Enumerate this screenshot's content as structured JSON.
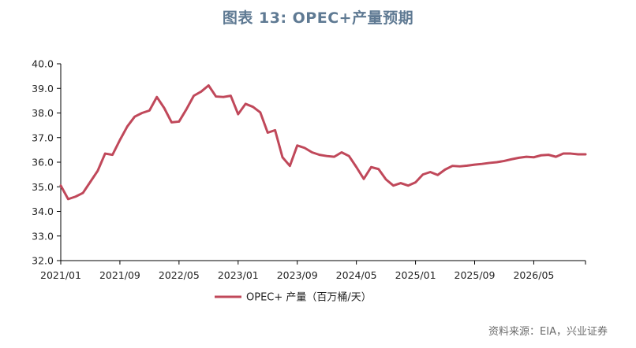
{
  "chart_data": {
    "type": "line",
    "title": "图表 13: OPEC+产量预期",
    "xlabel": "",
    "ylabel": "",
    "ylim": [
      32.0,
      40.0
    ],
    "y_ticks": [
      "32.0",
      "33.0",
      "34.0",
      "35.0",
      "36.0",
      "37.0",
      "38.0",
      "39.0",
      "40.0"
    ],
    "x_ticks": [
      "2021/01",
      "2021/09",
      "2022/05",
      "2023/01",
      "2023/09",
      "2024/05",
      "2025/01",
      "2025/09",
      "2026/05"
    ],
    "grid": false,
    "legend": "bottom",
    "x": [
      "2021/01",
      "2021/02",
      "2021/03",
      "2021/04",
      "2021/05",
      "2021/06",
      "2021/07",
      "2021/08",
      "2021/09",
      "2021/10",
      "2021/11",
      "2021/12",
      "2022/01",
      "2022/02",
      "2022/03",
      "2022/04",
      "2022/05",
      "2022/06",
      "2022/07",
      "2022/08",
      "2022/09",
      "2022/10",
      "2022/11",
      "2022/12",
      "2023/01",
      "2023/02",
      "2023/03",
      "2023/04",
      "2023/05",
      "2023/06",
      "2023/07",
      "2023/08",
      "2023/09",
      "2023/10",
      "2023/11",
      "2023/12",
      "2024/01",
      "2024/02",
      "2024/03",
      "2024/04",
      "2024/05",
      "2024/06",
      "2024/07",
      "2024/08",
      "2024/09",
      "2024/10",
      "2024/11",
      "2024/12",
      "2025/01",
      "2025/02",
      "2025/03",
      "2025/04",
      "2025/05",
      "2025/06",
      "2025/07",
      "2025/08",
      "2025/09",
      "2025/10",
      "2025/11",
      "2025/12",
      "2026/01",
      "2026/02",
      "2026/03",
      "2026/04",
      "2026/05",
      "2026/06",
      "2026/07",
      "2026/08",
      "2026/09",
      "2026/10",
      "2026/11",
      "2026/12"
    ],
    "series": [
      {
        "name": "OPEC+ 产量（百万桶/天）",
        "color": "#c0485a",
        "values": [
          35.05,
          34.5,
          34.6,
          34.75,
          35.2,
          35.65,
          36.35,
          36.3,
          36.9,
          37.45,
          37.85,
          38.0,
          38.1,
          38.65,
          38.2,
          37.62,
          37.65,
          38.15,
          38.7,
          38.87,
          39.12,
          38.67,
          38.65,
          38.7,
          37.95,
          38.37,
          38.25,
          38.02,
          37.2,
          37.3,
          36.2,
          35.85,
          36.68,
          36.58,
          36.4,
          36.3,
          36.25,
          36.22,
          36.4,
          36.25,
          35.8,
          35.32,
          35.8,
          35.72,
          35.3,
          35.05,
          35.15,
          35.05,
          35.18,
          35.5,
          35.6,
          35.48,
          35.7,
          35.85,
          35.83,
          35.86,
          35.9,
          35.93,
          35.97,
          36.0,
          36.05,
          36.12,
          36.18,
          36.22,
          36.2,
          36.28,
          36.3,
          36.22,
          36.35,
          36.35,
          36.32,
          36.32
        ]
      }
    ]
  },
  "source_note": "资料来源：EIA，兴业证券"
}
